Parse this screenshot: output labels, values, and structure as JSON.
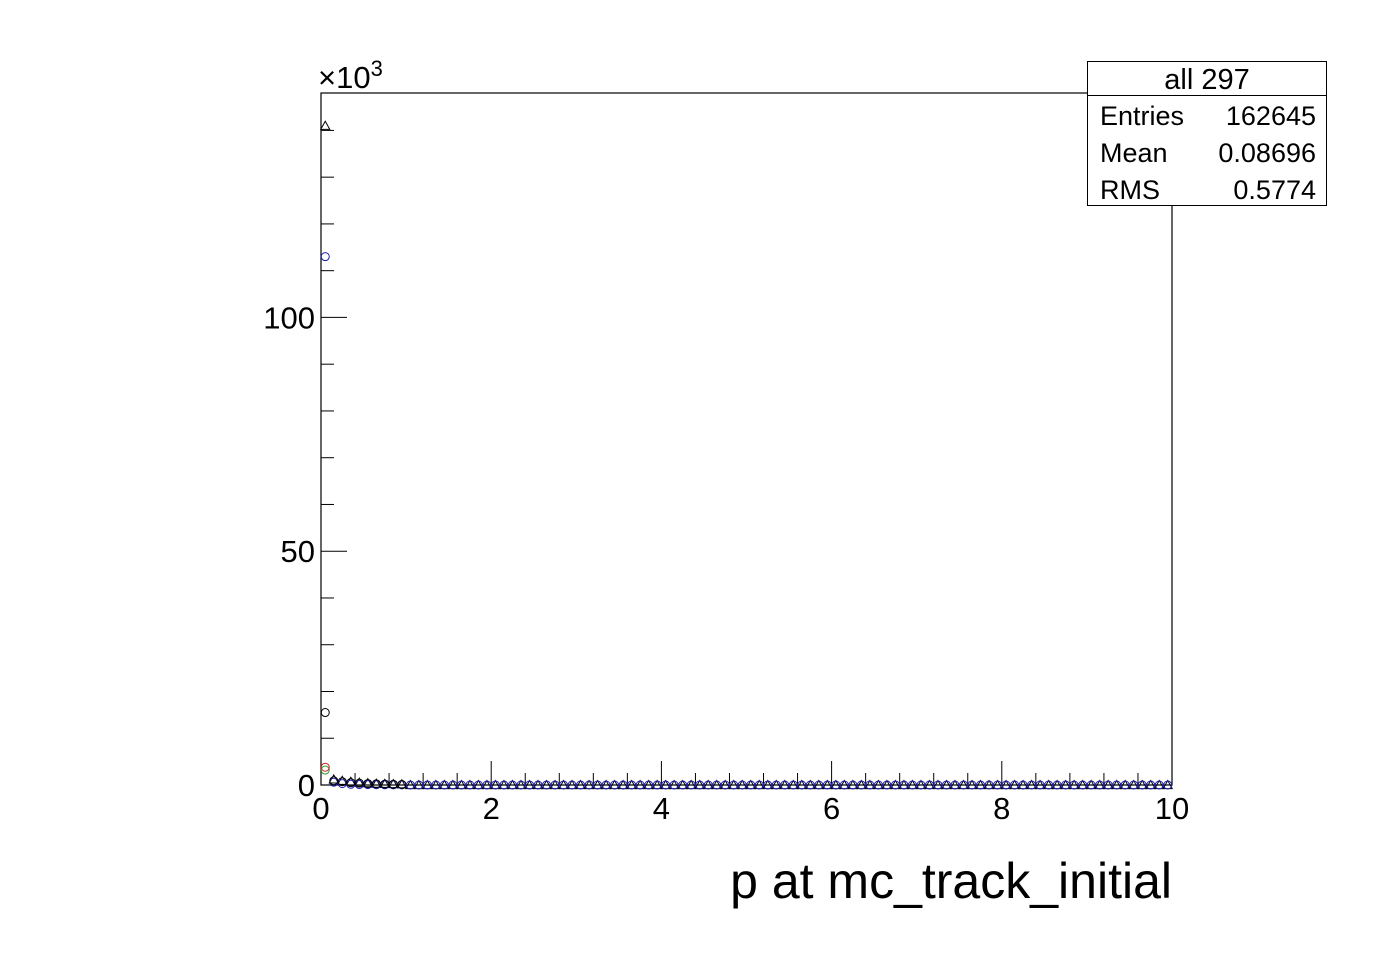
{
  "chart_data": {
    "type": "scatter",
    "xlabel": "p at mc_track_initial",
    "ylabel": "",
    "xlim": [
      0,
      10
    ],
    "ylim": [
      0,
      148000
    ],
    "y_exponent_label": "×10",
    "y_exponent_power": "3",
    "x_ticks": [
      "0",
      "2",
      "4",
      "6",
      "8",
      "10"
    ],
    "y_ticks": [
      {
        "value": 0,
        "label": "0"
      },
      {
        "value": 50000,
        "label": "50"
      },
      {
        "value": 100000,
        "label": "100"
      }
    ],
    "bin_width": 0.1,
    "series": [
      {
        "marker": "open-triangle",
        "color": "#000000",
        "points": [
          [
            0.05,
            141000
          ],
          [
            0.15,
            1200
          ],
          [
            0.25,
            900
          ],
          [
            0.35,
            700
          ],
          [
            0.45,
            500
          ],
          [
            0.55,
            400
          ],
          [
            0.65,
            300
          ],
          [
            0.75,
            250
          ],
          [
            0.85,
            200
          ],
          [
            0.95,
            150
          ]
        ]
      },
      {
        "marker": "open-circle",
        "color": "#1c1cb4",
        "points": [
          [
            0.05,
            113000
          ],
          [
            0.15,
            600
          ],
          [
            0.25,
            300
          ],
          [
            0.35,
            150
          ],
          [
            0.45,
            100
          ],
          [
            0.55,
            80
          ],
          [
            0.65,
            60
          ],
          [
            0.75,
            50
          ],
          [
            0.85,
            40
          ],
          [
            0.95,
            30
          ]
        ]
      },
      {
        "marker": "open-circle",
        "color": "#000000",
        "points": [
          [
            0.05,
            15500
          ],
          [
            0.15,
            900
          ],
          [
            0.25,
            700
          ],
          [
            0.35,
            500
          ],
          [
            0.45,
            400
          ],
          [
            0.55,
            300
          ],
          [
            0.65,
            250
          ],
          [
            0.75,
            200
          ],
          [
            0.85,
            150
          ],
          [
            0.95,
            120
          ]
        ]
      },
      {
        "marker": "open-circle",
        "color": "#2e9e2e",
        "points": [
          [
            0.05,
            3200
          ]
        ]
      },
      {
        "marker": "open-circle",
        "color": "#cc2222",
        "points": [
          [
            0.05,
            3800
          ]
        ]
      }
    ],
    "tail_from": 1.05,
    "tail_to": 9.95
  },
  "stats": {
    "title": "all 297",
    "entries_label": "Entries",
    "entries_value": "162645",
    "mean_label": "Mean",
    "mean_value": "0.08696",
    "rms_label": "RMS",
    "rms_value": "0.5774"
  }
}
